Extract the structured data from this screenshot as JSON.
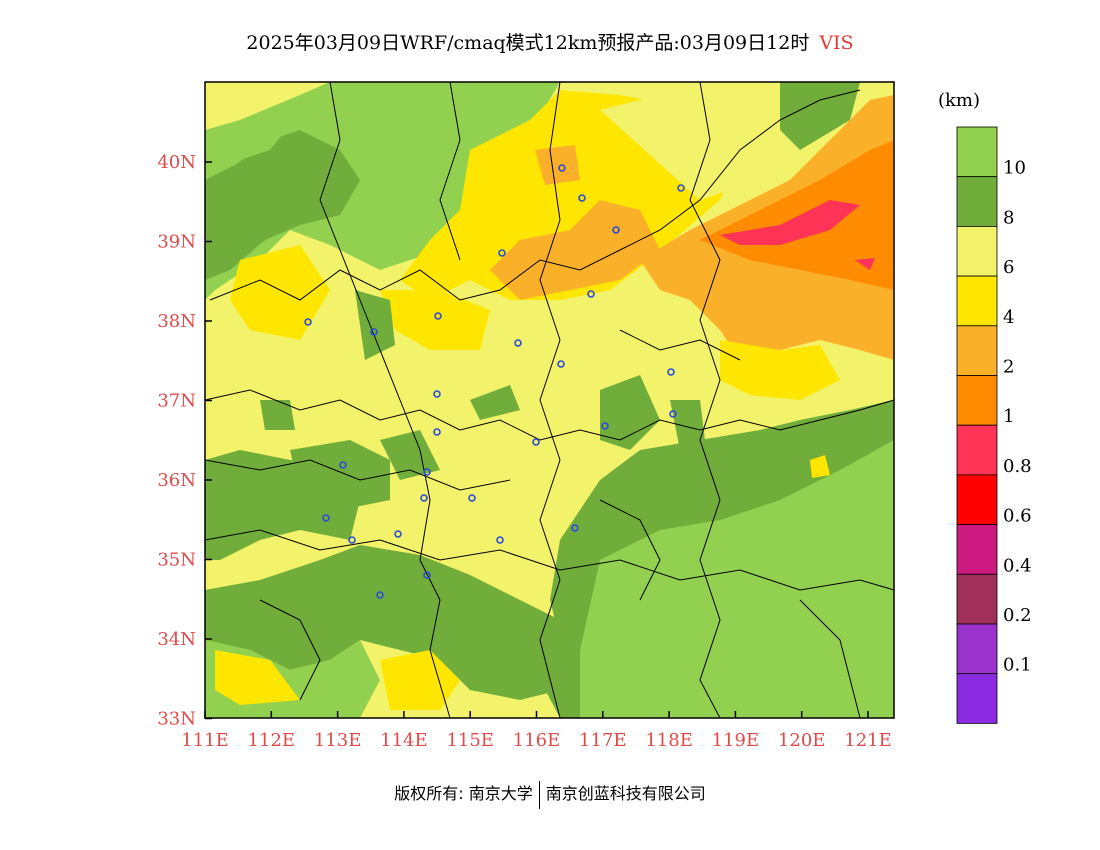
{
  "title": {
    "main": "2025年03月09日WRF/cmaq模式12km预报产品:03月09日12时",
    "variable": "VIS"
  },
  "unit": "(km)",
  "axes": {
    "lat_labels": [
      "40N",
      "39N",
      "38N",
      "37N",
      "36N",
      "35N",
      "34N",
      "33N"
    ],
    "lon_labels": [
      "111E",
      "112E",
      "113E",
      "114E",
      "115E",
      "116E",
      "117E",
      "118E",
      "119E",
      "120E",
      "121E"
    ]
  },
  "legend": {
    "levels": [
      {
        "label": "10",
        "color": "#92d050"
      },
      {
        "label": "8",
        "color": "#70ad3a"
      },
      {
        "label": "6",
        "color": "#f2f26b"
      },
      {
        "label": "4",
        "color": "#ffe600"
      },
      {
        "label": "2",
        "color": "#fbb02a"
      },
      {
        "label": "1",
        "color": "#ff8c00"
      },
      {
        "label": "0.8",
        "color": "#ff3355"
      },
      {
        "label": "0.6",
        "color": "#ff0000"
      },
      {
        "label": "0.4",
        "color": "#cc1a80"
      },
      {
        "label": "0.2",
        "color": "#a0305a"
      },
      {
        "label": "0.1",
        "color": "#9933cc"
      },
      {
        "label": "",
        "color": "#8a2be2"
      }
    ]
  },
  "footer": {
    "left": "版权所有: 南京大学",
    "right": "南京创蓝科技有限公司"
  }
}
